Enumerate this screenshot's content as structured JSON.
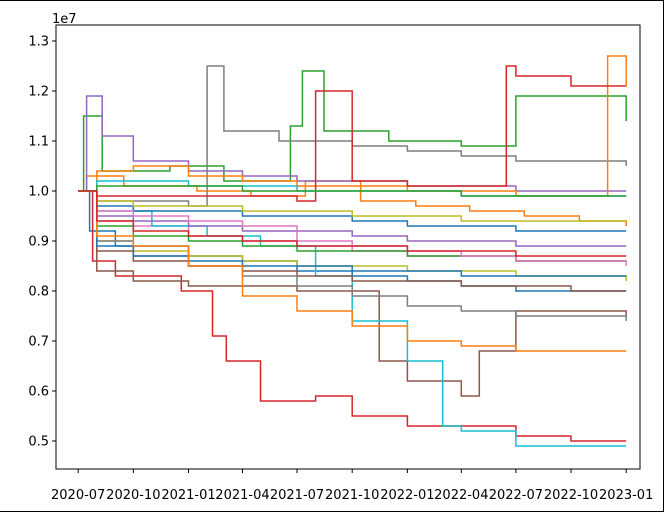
{
  "chart_data": {
    "type": "line",
    "title": "",
    "xlabel": "",
    "ylabel": "",
    "y_multiplier_label": "1e7",
    "xlim": [
      "2020-05-25",
      "2023-01-24"
    ],
    "ylim": [
      4.44,
      13.32
    ],
    "x_ticks": [
      "2020-07",
      "2020-10",
      "2021-01",
      "2021-04",
      "2021-07",
      "2021-10",
      "2022-01",
      "2022-04",
      "2022-07",
      "2022-10",
      "2023-01"
    ],
    "x_tick_dates": [
      "2020-07-01",
      "2020-10-01",
      "2021-01-01",
      "2021-04-01",
      "2021-07-01",
      "2021-10-01",
      "2022-01-01",
      "2022-04-01",
      "2022-07-01",
      "2022-10-01",
      "2023-01-01"
    ],
    "y_ticks": [
      "0.5",
      "0.6",
      "0.7",
      "0.8",
      "0.9",
      "1.0",
      "1.1",
      "1.2",
      "1.3"
    ],
    "y_tick_values": [
      5.0,
      6.0,
      7.0,
      8.0,
      9.0,
      10.0,
      11.0,
      12.0,
      13.0
    ],
    "grid": false,
    "legend": "none",
    "colors": [
      "#1f77b4",
      "#ff7f0e",
      "#2ca02c",
      "#d62728",
      "#9467bd",
      "#8c564b",
      "#e377c2",
      "#7f7f7f",
      "#bcbd22",
      "#17becf"
    ],
    "series": [
      {
        "x": [
          "2020-07-01",
          "2020-07-20",
          "2020-09-01",
          "2021-01-01",
          "2021-04-01",
          "2021-07-01",
          "2021-10-01",
          "2022-01-01",
          "2022-04-01",
          "2022-07-01",
          "2022-10-01",
          "2023-01-01"
        ],
        "values": [
          10.0,
          9.2,
          8.9,
          8.7,
          8.6,
          8.4,
          8.3,
          8.2,
          8.1,
          8.0,
          8.0,
          8.0
        ]
      },
      {
        "x": [
          "2020-07-01",
          "2020-07-15",
          "2020-09-15",
          "2021-01-15",
          "2021-04-15",
          "2021-07-15",
          "2021-10-15",
          "2022-01-15",
          "2022-04-15",
          "2022-07-15",
          "2022-10-15",
          "2023-01-01"
        ],
        "values": [
          10.0,
          10.3,
          10.1,
          10.0,
          9.9,
          10.2,
          9.8,
          9.7,
          9.6,
          9.5,
          9.4,
          9.3
        ]
      },
      {
        "x": [
          "2020-07-01",
          "2020-07-10",
          "2020-08-10",
          "2020-12-01",
          "2021-03-01",
          "2021-06-20",
          "2021-07-10",
          "2021-08-15",
          "2021-12-01",
          "2022-04-01",
          "2022-07-01",
          "2022-10-01",
          "2023-01-01"
        ],
        "values": [
          10.0,
          11.5,
          10.4,
          10.5,
          10.2,
          11.3,
          12.4,
          11.2,
          11.0,
          10.9,
          11.9,
          11.9,
          11.4
        ]
      },
      {
        "x": [
          "2020-07-01",
          "2020-07-25",
          "2020-09-01",
          "2020-12-20",
          "2021-02-10",
          "2021-03-05",
          "2021-05-01",
          "2021-08-01",
          "2021-10-01",
          "2022-01-01",
          "2022-04-01",
          "2022-07-01",
          "2022-10-01",
          "2023-01-01"
        ],
        "values": [
          10.0,
          8.6,
          8.3,
          8.0,
          7.1,
          6.6,
          5.8,
          5.9,
          5.5,
          5.3,
          5.3,
          5.1,
          5.0,
          5.0
        ]
      },
      {
        "x": [
          "2020-07-01",
          "2020-07-15",
          "2020-08-10",
          "2020-10-01",
          "2021-01-01",
          "2021-04-01",
          "2021-07-01",
          "2021-10-01",
          "2022-01-01",
          "2022-04-01",
          "2022-07-01",
          "2022-10-01",
          "2023-01-01"
        ],
        "values": [
          10.0,
          11.9,
          11.1,
          10.6,
          10.4,
          10.3,
          10.2,
          10.2,
          10.1,
          10.1,
          10.0,
          10.0,
          10.0
        ]
      },
      {
        "x": [
          "2020-07-01",
          "2020-08-01",
          "2020-10-01",
          "2021-01-01",
          "2021-04-01",
          "2021-07-01",
          "2021-10-01",
          "2021-11-15",
          "2022-01-01",
          "2022-04-01",
          "2022-05-01",
          "2022-07-01",
          "2022-10-01",
          "2023-01-01"
        ],
        "values": [
          10.0,
          8.4,
          8.2,
          8.1,
          8.1,
          8.0,
          8.0,
          6.6,
          6.2,
          5.9,
          6.8,
          7.6,
          7.6,
          7.5
        ]
      },
      {
        "x": [
          "2020-07-01",
          "2020-08-01",
          "2020-10-01",
          "2021-01-01",
          "2021-04-01",
          "2021-07-01",
          "2021-10-01",
          "2022-01-01",
          "2022-04-01",
          "2022-07-01",
          "2022-10-01",
          "2023-01-01"
        ],
        "values": [
          10.0,
          9.4,
          9.3,
          9.1,
          9.0,
          8.9,
          8.8,
          8.7,
          8.7,
          8.6,
          8.6,
          8.5
        ]
      },
      {
        "x": [
          "2020-07-01",
          "2020-08-01",
          "2021-01-01",
          "2021-02-01",
          "2021-03-01",
          "2021-06-01",
          "2021-10-01",
          "2022-01-01",
          "2022-04-01",
          "2022-07-01",
          "2022-10-01",
          "2023-01-01"
        ],
        "values": [
          10.0,
          9.8,
          9.7,
          12.5,
          11.2,
          11.0,
          10.9,
          10.8,
          10.7,
          10.6,
          10.6,
          10.5
        ]
      },
      {
        "x": [
          "2020-07-01",
          "2020-08-01",
          "2020-10-01",
          "2021-01-01",
          "2021-04-01",
          "2021-07-01",
          "2021-10-01",
          "2022-01-01",
          "2022-04-01",
          "2022-07-01",
          "2022-10-01",
          "2023-01-01"
        ],
        "values": [
          10.0,
          9.0,
          8.8,
          8.7,
          8.6,
          8.5,
          8.5,
          8.4,
          8.4,
          8.3,
          8.3,
          8.2
        ]
      },
      {
        "x": [
          "2020-07-01",
          "2020-08-01",
          "2020-11-01",
          "2021-02-01",
          "2021-05-01",
          "2021-08-01",
          "2021-10-01",
          "2022-01-01",
          "2022-03-01",
          "2022-04-01",
          "2022-07-01",
          "2022-10-01",
          "2023-01-01"
        ],
        "values": [
          10.0,
          9.6,
          9.3,
          9.1,
          8.9,
          8.3,
          7.4,
          6.6,
          5.3,
          5.2,
          4.9,
          4.9,
          4.9
        ]
      },
      {
        "x": [
          "2020-07-01",
          "2020-08-01",
          "2020-10-01",
          "2021-01-01",
          "2021-04-01",
          "2021-07-01",
          "2021-10-01",
          "2022-01-01",
          "2022-04-01",
          "2022-07-01",
          "2022-10-01",
          "2023-01-01"
        ],
        "values": [
          10.0,
          9.7,
          9.6,
          9.6,
          9.5,
          9.5,
          9.4,
          9.3,
          9.3,
          9.2,
          9.2,
          9.2
        ]
      },
      {
        "x": [
          "2020-07-01",
          "2020-08-01",
          "2020-10-01",
          "2021-01-01",
          "2021-04-01",
          "2021-07-01",
          "2021-10-01",
          "2022-01-01",
          "2022-04-01",
          "2022-05-01",
          "2022-07-01",
          "2022-10-01",
          "2022-12-01",
          "2023-01-01"
        ],
        "values": [
          10.0,
          10.4,
          10.5,
          10.3,
          10.2,
          10.1,
          10.1,
          10.0,
          10.0,
          10.0,
          9.9,
          9.9,
          12.7,
          12.1
        ]
      },
      {
        "x": [
          "2020-07-01",
          "2020-08-01",
          "2020-10-01",
          "2021-01-01",
          "2021-04-01",
          "2021-07-01",
          "2021-10-01",
          "2022-01-01",
          "2022-04-01",
          "2022-07-01",
          "2022-10-01",
          "2023-01-01"
        ],
        "values": [
          10.0,
          9.3,
          9.1,
          9.0,
          8.9,
          8.8,
          8.8,
          8.7,
          8.7,
          8.6,
          8.6,
          8.6
        ]
      },
      {
        "x": [
          "2020-07-01",
          "2020-08-01",
          "2020-10-01",
          "2021-01-01",
          "2021-04-01",
          "2021-07-01",
          "2021-08-01",
          "2021-10-01",
          "2022-01-01",
          "2022-04-01",
          "2022-06-15",
          "2022-07-01",
          "2022-10-01",
          "2023-01-01"
        ],
        "values": [
          10.0,
          9.9,
          9.9,
          9.9,
          9.9,
          9.8,
          12.0,
          10.2,
          10.1,
          10.1,
          12.5,
          12.3,
          12.1,
          12.1
        ]
      },
      {
        "x": [
          "2020-07-01",
          "2020-08-01",
          "2020-10-01",
          "2021-01-01",
          "2021-04-01",
          "2021-07-01",
          "2021-10-01",
          "2022-01-01",
          "2022-04-01",
          "2022-07-01",
          "2022-10-01",
          "2023-01-01"
        ],
        "values": [
          10.0,
          9.5,
          9.4,
          9.3,
          9.2,
          9.2,
          9.1,
          9.0,
          9.0,
          8.9,
          8.9,
          8.9
        ]
      },
      {
        "x": [
          "2020-07-01",
          "2020-08-01",
          "2020-10-01",
          "2021-01-01",
          "2021-04-01",
          "2021-07-01",
          "2021-10-01",
          "2022-01-01",
          "2022-04-01",
          "2022-07-01",
          "2022-10-01",
          "2023-01-01"
        ],
        "values": [
          10.0,
          8.8,
          8.6,
          8.5,
          8.4,
          8.3,
          8.2,
          8.2,
          8.1,
          8.1,
          8.0,
          8.0
        ]
      },
      {
        "x": [
          "2020-07-01",
          "2020-08-01",
          "2020-10-01",
          "2021-01-01",
          "2021-04-01",
          "2021-07-01",
          "2021-10-01",
          "2022-01-01",
          "2022-04-01",
          "2022-07-01",
          "2022-10-01",
          "2023-01-01"
        ],
        "values": [
          10.0,
          9.6,
          9.5,
          9.4,
          9.3,
          9.0,
          8.9,
          8.8,
          8.7,
          8.6,
          8.6,
          8.6
        ]
      },
      {
        "x": [
          "2020-07-01",
          "2020-08-01",
          "2020-10-01",
          "2021-01-01",
          "2021-04-01",
          "2021-07-01",
          "2021-10-01",
          "2022-01-01",
          "2022-04-01",
          "2022-07-01",
          "2022-10-01",
          "2023-01-01"
        ],
        "values": [
          10.0,
          9.0,
          8.7,
          8.5,
          8.3,
          8.1,
          7.9,
          7.7,
          7.6,
          7.5,
          7.5,
          7.4
        ]
      },
      {
        "x": [
          "2020-07-01",
          "2020-08-01",
          "2020-10-01",
          "2021-01-01",
          "2021-04-01",
          "2021-07-01",
          "2021-10-01",
          "2022-01-01",
          "2022-04-01",
          "2022-07-01",
          "2022-10-01",
          "2023-01-01"
        ],
        "values": [
          10.0,
          9.8,
          9.7,
          9.7,
          9.6,
          9.6,
          9.5,
          9.5,
          9.4,
          9.4,
          9.4,
          9.4
        ]
      },
      {
        "x": [
          "2020-07-01",
          "2020-08-01",
          "2020-10-01",
          "2021-01-01",
          "2021-04-01",
          "2021-07-01",
          "2021-10-01",
          "2022-01-01",
          "2022-04-01",
          "2022-07-01",
          "2022-10-01",
          "2023-01-01"
        ],
        "values": [
          10.0,
          10.2,
          10.2,
          10.1,
          10.1,
          10.0,
          10.0,
          10.0,
          9.9,
          9.9,
          9.9,
          9.9
        ]
      },
      {
        "x": [
          "2020-07-01",
          "2020-08-01",
          "2020-10-01",
          "2021-01-01",
          "2021-04-01",
          "2021-07-01",
          "2021-10-01",
          "2022-01-01",
          "2022-04-01",
          "2022-07-01",
          "2022-10-01",
          "2023-01-01"
        ],
        "values": [
          10.0,
          8.9,
          8.7,
          8.6,
          8.5,
          8.5,
          8.4,
          8.4,
          8.3,
          8.3,
          8.3,
          8.3
        ]
      },
      {
        "x": [
          "2020-07-01",
          "2020-08-01",
          "2020-10-01",
          "2021-01-01",
          "2021-04-01",
          "2021-07-01",
          "2021-10-01",
          "2022-01-01",
          "2022-04-01",
          "2022-07-01",
          "2022-10-01",
          "2023-01-01"
        ],
        "values": [
          10.0,
          9.1,
          8.9,
          8.5,
          7.9,
          7.6,
          7.3,
          7.0,
          6.9,
          6.8,
          6.8,
          6.8
        ]
      },
      {
        "x": [
          "2020-07-01",
          "2020-08-01",
          "2020-10-01",
          "2021-01-01",
          "2021-04-01",
          "2021-07-01",
          "2021-10-01",
          "2022-01-01",
          "2022-04-01",
          "2022-07-01",
          "2022-10-01",
          "2023-01-01"
        ],
        "values": [
          10.0,
          10.1,
          10.1,
          10.1,
          10.0,
          10.0,
          10.0,
          10.0,
          9.9,
          9.9,
          9.9,
          9.9
        ]
      },
      {
        "x": [
          "2020-07-01",
          "2020-08-01",
          "2020-10-01",
          "2021-01-01",
          "2021-04-01",
          "2021-07-01",
          "2021-10-01",
          "2022-01-01",
          "2022-04-01",
          "2022-07-01",
          "2022-10-01",
          "2023-01-01"
        ],
        "values": [
          10.0,
          9.4,
          9.2,
          9.1,
          9.0,
          8.9,
          8.9,
          8.8,
          8.8,
          8.7,
          8.7,
          8.7
        ]
      }
    ]
  }
}
